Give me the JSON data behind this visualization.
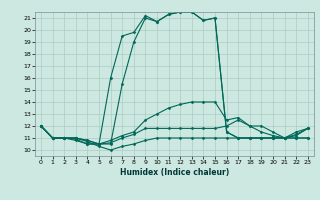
{
  "xlabel": "Humidex (Indice chaleur)",
  "xlim": [
    -0.5,
    23.5
  ],
  "ylim": [
    9.5,
    21.5
  ],
  "xticks": [
    0,
    1,
    2,
    3,
    4,
    5,
    6,
    7,
    8,
    9,
    10,
    11,
    12,
    13,
    14,
    15,
    16,
    17,
    18,
    19,
    20,
    21,
    22,
    23
  ],
  "yticks": [
    10,
    11,
    12,
    13,
    14,
    15,
    16,
    17,
    18,
    19,
    20,
    21
  ],
  "bg_color": "#cce8e0",
  "line_color": "#006858",
  "grid_color": "#aaccc4",
  "series": [
    [
      12,
      11,
      11,
      11,
      10.7,
      10.3,
      10,
      10.3,
      10.5,
      10.8,
      11,
      11,
      11,
      11,
      11,
      11,
      11,
      11,
      11,
      11,
      11,
      11,
      11.5,
      11.8
    ],
    [
      12,
      11,
      11,
      10.8,
      10.5,
      10.5,
      10.6,
      11,
      11.3,
      11.8,
      11.8,
      11.8,
      11.8,
      11.8,
      11.8,
      11.8,
      12,
      12.5,
      12,
      12,
      11.5,
      11,
      11.2,
      11.8
    ],
    [
      12,
      11,
      11,
      10.9,
      10.5,
      10.5,
      10.8,
      11.2,
      11.5,
      12.5,
      13,
      13.5,
      13.8,
      14,
      14,
      14,
      12.5,
      12.7,
      12,
      11.5,
      11.2,
      11,
      11.3,
      11.8
    ],
    [
      12,
      11,
      11,
      11,
      10.8,
      10.5,
      10.5,
      15.5,
      19,
      21,
      20.7,
      21.3,
      21.5,
      21.5,
      20.8,
      21,
      11.5,
      11,
      11,
      11,
      11,
      11,
      11,
      11
    ],
    [
      12,
      11,
      11,
      11,
      10.8,
      10.5,
      16,
      19.5,
      19.8,
      21.2,
      20.7,
      21.3,
      21.5,
      21.5,
      20.8,
      21,
      11.5,
      11,
      11,
      11,
      11,
      11,
      11,
      11
    ]
  ]
}
